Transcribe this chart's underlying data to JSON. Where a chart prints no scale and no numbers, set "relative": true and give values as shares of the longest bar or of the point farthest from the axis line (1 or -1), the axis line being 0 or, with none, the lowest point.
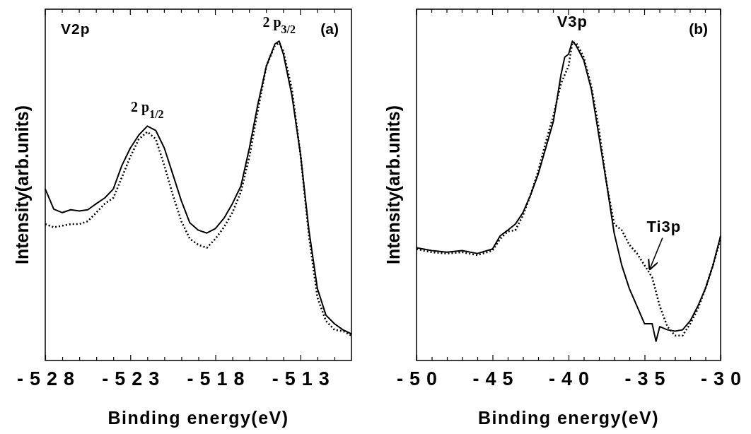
{
  "chart_data": [
    {
      "type": "line",
      "relative": true,
      "title": "(a)",
      "xlabel": "Binding energy(eV)",
      "ylabel": "Intensity(arb.units)",
      "annotations": [
        "V2p",
        {
          "text": "2 p$_{1/2}$",
          "x": -522,
          "y": 0.734
        },
        {
          "text": "2 p$_{3/2}$",
          "x": -514.25,
          "y": 1.0
        }
      ],
      "xlim": [
        -528,
        -510
      ],
      "xticks": [
        -528,
        {
          "value": -527,
          "label": null
        },
        {
          "value": -526,
          "label": null
        },
        {
          "value": -525,
          "label": null
        },
        {
          "value": -524,
          "label": null
        },
        -523,
        {
          "value": -522,
          "label": null
        },
        {
          "value": -521,
          "label": null
        },
        {
          "value": -520,
          "label": null
        },
        {
          "value": -519,
          "label": null
        },
        -518,
        {
          "value": -517,
          "label": null
        },
        {
          "value": -516,
          "label": null
        },
        {
          "value": -515,
          "label": null
        },
        {
          "value": -514,
          "label": null
        },
        -513,
        {
          "value": -512,
          "label": null
        },
        {
          "value": -511,
          "label": null
        }
      ],
      "series": [
        {
          "color": "#000000",
          "line_style": "solid",
          "x": [
            -528,
            -527.5,
            -527,
            -526.5,
            -526,
            -525.5,
            -525,
            -524.5,
            -524,
            -523.5,
            -523,
            -522.5,
            -522,
            -521.5,
            -521,
            -520.5,
            -520,
            -519.5,
            -519,
            -518.5,
            -518,
            -517.5,
            -517,
            -516.5,
            -516,
            -515.5,
            -515,
            -514.5,
            -514.25,
            -514,
            -513.5,
            -513,
            -512.5,
            -512,
            -511.5,
            -511,
            -510.5,
            -510
          ],
          "values": [
            0.537,
            0.474,
            0.463,
            0.472,
            0.468,
            0.472,
            0.491,
            0.509,
            0.537,
            0.61,
            0.665,
            0.706,
            0.734,
            0.72,
            0.665,
            0.583,
            0.5,
            0.431,
            0.408,
            0.399,
            0.413,
            0.445,
            0.491,
            0.546,
            0.665,
            0.803,
            0.922,
            0.991,
            1.0,
            0.959,
            0.83,
            0.647,
            0.408,
            0.225,
            0.142,
            0.115,
            0.096,
            0.083
          ]
        },
        {
          "color": "#000000",
          "line_style": "dotted",
          "x": [
            -528,
            -527.5,
            -527,
            -526.5,
            -526,
            -525.5,
            -525,
            -524.5,
            -524,
            -523.5,
            -523,
            -522.5,
            -522,
            -521.5,
            -521,
            -520.5,
            -520,
            -519.5,
            -519,
            -518.5,
            -518,
            -517.5,
            -517,
            -516.5,
            -516,
            -515.5,
            -515,
            -514.5,
            -514.25,
            -514,
            -513.5,
            -513,
            -512.5,
            -512,
            -511.5,
            -511,
            -510.5,
            -510
          ],
          "values": [
            0.427,
            0.417,
            0.422,
            0.427,
            0.427,
            0.436,
            0.463,
            0.491,
            0.509,
            0.573,
            0.638,
            0.693,
            0.716,
            0.693,
            0.61,
            0.518,
            0.436,
            0.381,
            0.362,
            0.353,
            0.381,
            0.417,
            0.463,
            0.528,
            0.638,
            0.784,
            0.922,
            0.986,
            0.995,
            0.968,
            0.849,
            0.647,
            0.39,
            0.197,
            0.124,
            0.096,
            0.092,
            0.078
          ]
        }
      ]
    },
    {
      "type": "line",
      "relative": true,
      "title": "(b)",
      "xlabel": "Binding energy(eV)",
      "ylabel": "Intensity(arb.units)",
      "annotations": [
        {
          "text": "V3p",
          "x": -39.75,
          "y": 1.0
        },
        {
          "text": "Ti3p",
          "x": -34.75,
          "y": 0.28
        }
      ],
      "xlim": [
        -50,
        -30
      ],
      "xticks": [
        -50,
        {
          "value": -49,
          "label": null
        },
        {
          "value": -48,
          "label": null
        },
        {
          "value": -47,
          "label": null
        },
        {
          "value": -46,
          "label": null
        },
        -45,
        {
          "value": -44,
          "label": null
        },
        {
          "value": -43,
          "label": null
        },
        {
          "value": -42,
          "label": null
        },
        {
          "value": -41,
          "label": null
        },
        -40,
        {
          "value": -39,
          "label": null
        },
        {
          "value": -38,
          "label": null
        },
        {
          "value": -37,
          "label": null
        },
        {
          "value": -36,
          "label": null
        },
        -35,
        {
          "value": -34,
          "label": null
        },
        {
          "value": -33,
          "label": null
        },
        {
          "value": -32,
          "label": null
        },
        {
          "value": -31,
          "label": null
        },
        -30
      ],
      "series": [
        {
          "color": "#000000",
          "line_style": "solid",
          "x": [
            -50,
            -49,
            -48,
            -47,
            -46,
            -45,
            -44.5,
            -44,
            -43.5,
            -43,
            -42.5,
            -42,
            -41.5,
            -41,
            -40.5,
            -40.25,
            -40,
            -39.75,
            -39.5,
            -39,
            -38.5,
            -38,
            -37.5,
            -37,
            -36.5,
            -36,
            -35.5,
            -35,
            -34.5,
            -34.25,
            -34,
            -33.5,
            -33,
            -32.5,
            -32,
            -31.5,
            -31,
            -30.5,
            -30
          ],
          "values": [
            0.353,
            0.344,
            0.339,
            0.344,
            0.335,
            0.349,
            0.39,
            0.408,
            0.427,
            0.463,
            0.518,
            0.583,
            0.665,
            0.748,
            0.894,
            0.95,
            0.959,
            1.0,
            0.986,
            0.94,
            0.849,
            0.702,
            0.555,
            0.399,
            0.298,
            0.225,
            0.17,
            0.115,
            0.115,
            0.06,
            0.106,
            0.096,
            0.092,
            0.096,
            0.124,
            0.17,
            0.225,
            0.298,
            0.39
          ]
        },
        {
          "color": "#000000",
          "line_style": "dotted",
          "x": [
            -50,
            -49,
            -48,
            -47,
            -46,
            -45,
            -44.5,
            -44,
            -43.5,
            -43,
            -42.5,
            -42,
            -41.5,
            -41,
            -40.5,
            -40,
            -39.75,
            -39.5,
            -39,
            -38.5,
            -38,
            -37.5,
            -37,
            -36.5,
            -36,
            -35.5,
            -35,
            -34.5,
            -34,
            -33.5,
            -33,
            -32.5,
            -32,
            -31.5,
            -31,
            -30.5,
            -30
          ],
          "values": [
            0.349,
            0.339,
            0.335,
            0.339,
            0.33,
            0.344,
            0.381,
            0.404,
            0.408,
            0.454,
            0.518,
            0.592,
            0.683,
            0.766,
            0.867,
            0.922,
            0.995,
            0.995,
            0.95,
            0.858,
            0.725,
            0.555,
            0.427,
            0.408,
            0.362,
            0.335,
            0.298,
            0.26,
            0.17,
            0.106,
            0.078,
            0.078,
            0.115,
            0.161,
            0.225,
            0.298,
            0.381
          ]
        }
      ]
    }
  ]
}
